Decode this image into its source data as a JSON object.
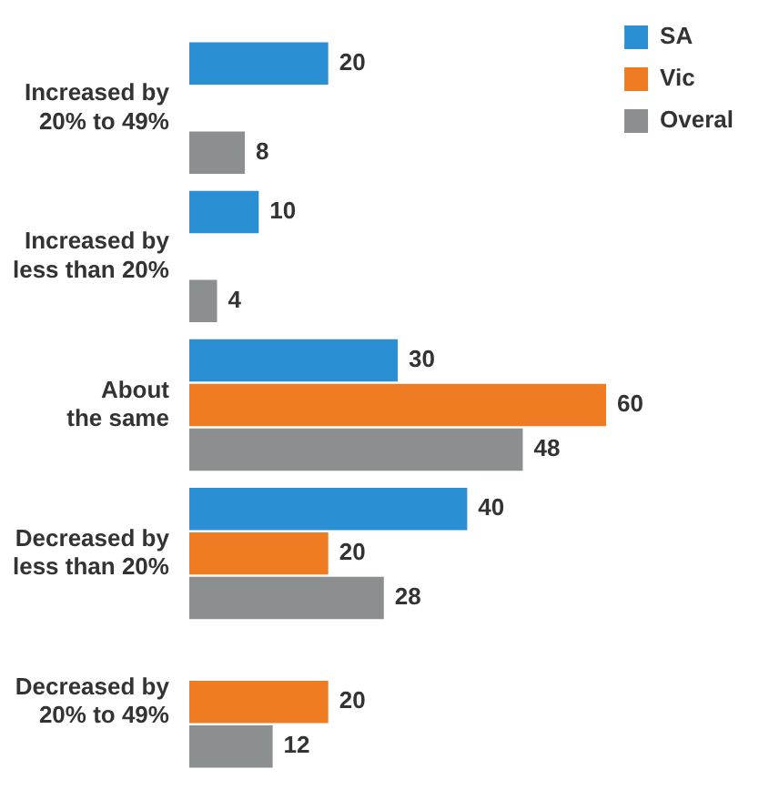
{
  "chart_data": {
    "type": "bar",
    "orientation": "horizontal",
    "categories": [
      "Increased by\n20% to 49%",
      "Increased by\nless than 20%",
      "About\nthe same",
      "Decreased by\nless than 20%",
      "Decreased by\n20% to 49%"
    ],
    "series": [
      {
        "name": "SA",
        "color": "#2b8fd3",
        "values": [
          20,
          10,
          30,
          40,
          null
        ]
      },
      {
        "name": "Vic",
        "color": "#ef7b22",
        "values": [
          null,
          null,
          60,
          20,
          20
        ]
      },
      {
        "name": "Overal",
        "color": "#8b8f90",
        "values": [
          8,
          4,
          48,
          28,
          12
        ]
      }
    ],
    "data_labels": true,
    "legend": "right"
  }
}
